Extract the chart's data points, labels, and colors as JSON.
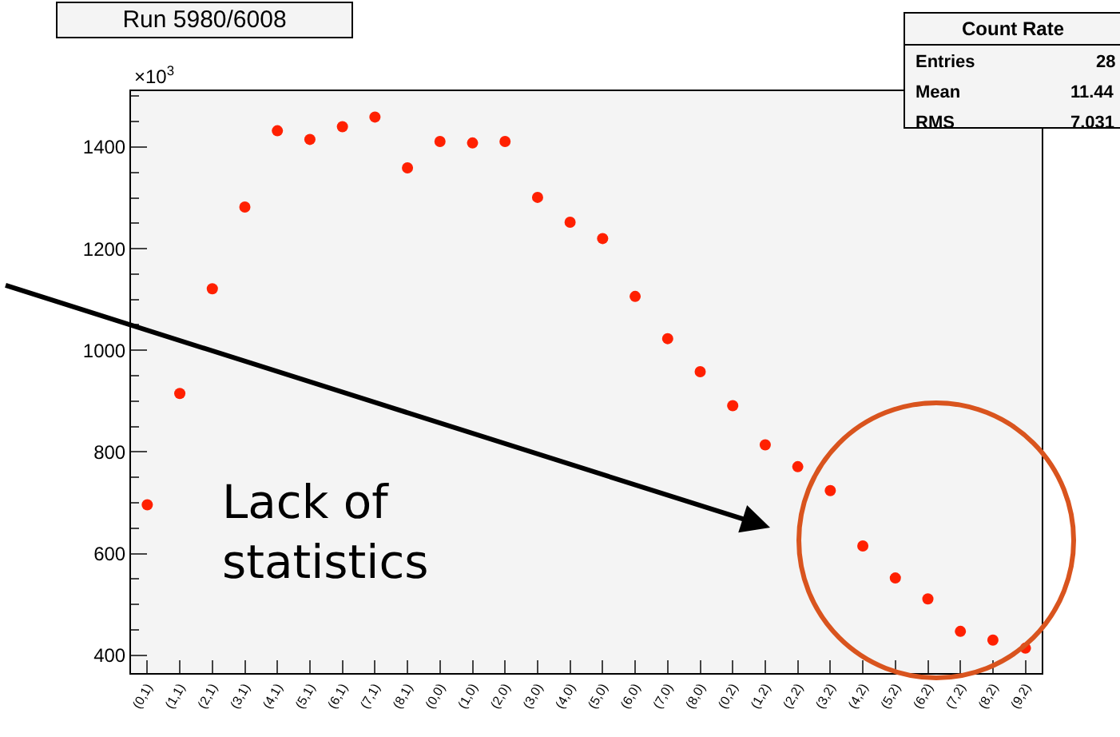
{
  "chart_data": {
    "type": "scatter",
    "title": "Run 5980/6008",
    "categories": [
      "(0,1)",
      "(1,1)",
      "(2,1)",
      "(3,1)",
      "(4,1)",
      "(5,1)",
      "(6,1)",
      "(7,1)",
      "(8,1)",
      "(0,0)",
      "(1,0)",
      "(2,0)",
      "(3,0)",
      "(4,0)",
      "(5,0)",
      "(6,0)",
      "(7,0)",
      "(8,0)",
      "(0,2)",
      "(1,2)",
      "(2,2)",
      "(3,2)",
      "(4,2)",
      "(5,2)",
      "(6,2)",
      "(7,2)",
      "(8,2)",
      "(9,2)"
    ],
    "series": [
      {
        "color": "#ff2000",
        "values": [
          696,
          915,
          1121,
          1282,
          1432,
          1415,
          1440,
          1459,
          1359,
          1411,
          1408,
          1411,
          1301,
          1252,
          1220,
          1106,
          1023,
          958,
          891,
          814,
          771,
          724,
          615,
          552,
          511,
          447,
          430,
          414
        ]
      }
    ],
    "ylim": [
      365,
      1510
    ],
    "yticks": [
      400,
      600,
      800,
      1000,
      1200,
      1400
    ],
    "marker": "circle",
    "grid": false,
    "annotations": [
      "×10$^{3}$",
      "Count Rate",
      "Entries",
      "28",
      "Mean",
      "11.44",
      "RMS",
      "7.031",
      "Lack of statistics"
    ]
  }
}
